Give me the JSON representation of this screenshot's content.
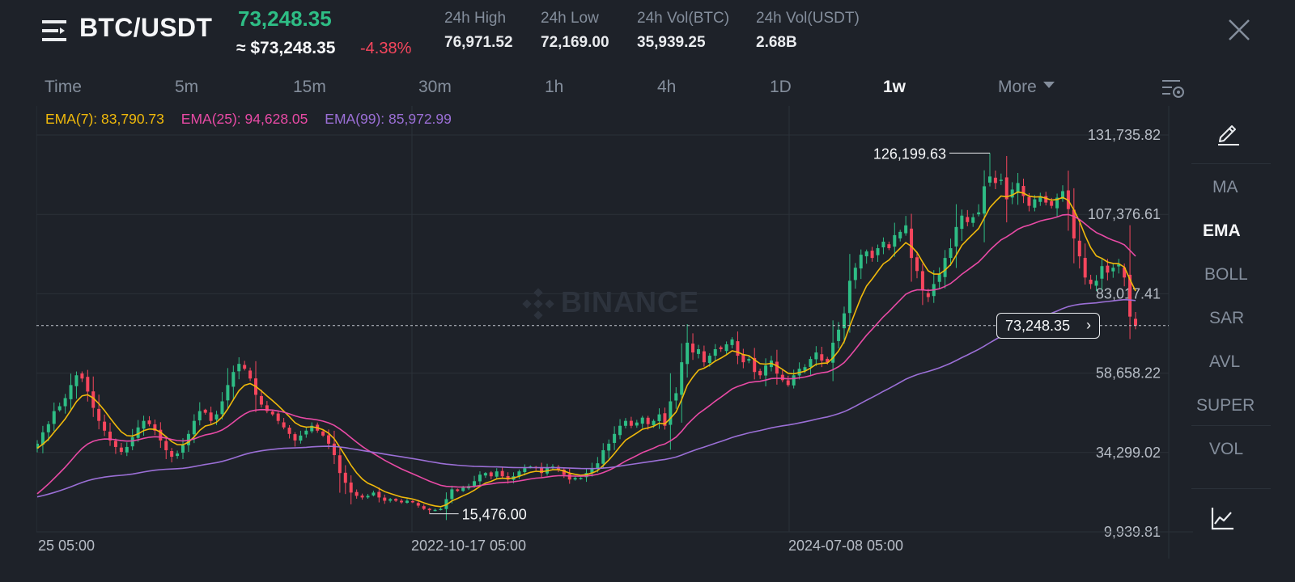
{
  "header": {
    "pair": "BTC/USDT",
    "last_price": "73,248.35",
    "approx_price": "≈ $73,248.35",
    "change_pct": "-4.38%",
    "stats": [
      {
        "label": "24h High",
        "value": "76,971.52"
      },
      {
        "label": "24h Low",
        "value": "72,169.00"
      },
      {
        "label": "24h Vol(BTC)",
        "value": "35,939.25"
      },
      {
        "label": "24h Vol(USDT)",
        "value": "2.68B"
      }
    ]
  },
  "tabs": {
    "items": [
      "Time",
      "5m",
      "15m",
      "30m",
      "1h",
      "4h",
      "1D",
      "1w"
    ],
    "active": "1w",
    "more": "More"
  },
  "chart": {
    "watermark": "BINANCE",
    "ema": {
      "ema7": "EMA(7): 83,790.73",
      "ema25": "EMA(25): 94,628.05",
      "ema99": "EMA(99): 85,972.99"
    },
    "price_tag": "73,248.35",
    "high_label": "126,199.63",
    "low_label": "15,476.00"
  },
  "sidebar": {
    "items": [
      "MA",
      "EMA",
      "BOLL",
      "SAR",
      "AVL",
      "SUPER",
      "VOL"
    ],
    "active": "EMA"
  },
  "colors": {
    "up": "#2ebd85",
    "down": "#f6465d",
    "ema7": "#f0b90b",
    "ema25": "#e84aa5",
    "ema99": "#9b6fd6",
    "background": "#1e2229"
  },
  "chart_data": {
    "type": "candlestick",
    "interval": "1w",
    "y_ticks": [
      "131,735.82",
      "107,376.61",
      "83,017.41",
      "58,658.22",
      "34,299.02",
      "9,939.81"
    ],
    "ylim": [
      9939.81,
      131735.82
    ],
    "x_ticks": [
      "25 05:00",
      "2022-10-17 05:00",
      "2024-07-08 05:00"
    ],
    "current_price": 73248.35,
    "max_high": 126199.63,
    "min_low": 15476.0,
    "close_series": [
      37000,
      40500,
      43000,
      47000,
      48500,
      51000,
      55000,
      58000,
      57000,
      53000,
      48000,
      44000,
      41000,
      38000,
      36000,
      34500,
      36000,
      39000,
      42000,
      44000,
      43000,
      41000,
      38000,
      35000,
      33000,
      34000,
      36500,
      40000,
      44000,
      47000,
      46500,
      44000,
      46000,
      50000,
      55000,
      59000,
      61500,
      60000,
      57000,
      52000,
      49000,
      47000,
      46000,
      44000,
      42000,
      40000,
      38000,
      39500,
      41000,
      42500,
      41000,
      39500,
      37000,
      33500,
      28000,
      25000,
      22000,
      21000,
      20500,
      21000,
      22000,
      20500,
      19500,
      20000,
      19500,
      19000,
      19500,
      19000,
      18000,
      17000,
      16600,
      16700,
      17000,
      20000,
      23000,
      22500,
      23500,
      24000,
      25500,
      27500,
      28000,
      27000,
      28500,
      27000,
      26000,
      27000,
      28500,
      29500,
      30000,
      29500,
      28000,
      29500,
      30000,
      29000,
      27500,
      26000,
      26500,
      26500,
      28000,
      29500,
      31000,
      35000,
      37000,
      40000,
      42500,
      44000,
      42500,
      43500,
      45000,
      43000,
      44000,
      46000,
      42500,
      50000,
      52500,
      62000,
      68000,
      65000,
      66000,
      62000,
      64000,
      66000,
      66000,
      67500,
      69000,
      64000,
      62000,
      63000,
      59000,
      58000,
      61000,
      62500,
      58500,
      56500,
      55000,
      58000,
      60000,
      60500,
      63000,
      65000,
      62500,
      62000,
      68000,
      72000,
      77000,
      87000,
      91000,
      95000,
      96000,
      94000,
      97000,
      99000,
      97000,
      101000,
      102000,
      104000,
      94000,
      90000,
      84000,
      82000,
      86000,
      89000,
      94000,
      97000,
      103500,
      107000,
      105000,
      106500,
      108000,
      116000,
      119000,
      117000,
      118000,
      112000,
      115000,
      117000,
      113000,
      110000,
      112000,
      113000,
      111000,
      110000,
      112500,
      114500,
      109000,
      100000,
      94500,
      88000,
      86000,
      87000,
      91500,
      89500,
      91000,
      92000,
      88000,
      76000,
      73248.35
    ]
  }
}
